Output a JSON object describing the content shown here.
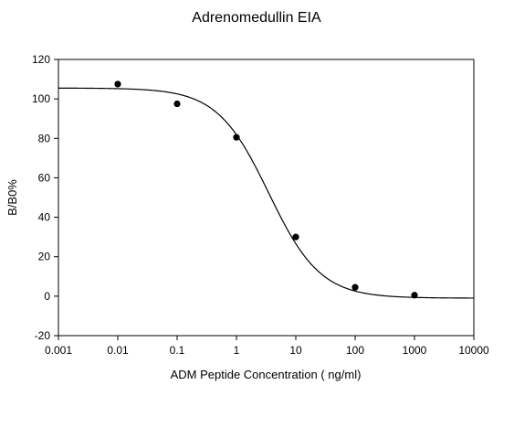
{
  "chart_data": {
    "type": "scatter",
    "title": "Adrenomedullin EIA",
    "xlabel": "ADM Peptide Concentration ( ng/ml)",
    "ylabel": "B/B0%",
    "xscale": "log",
    "xlim": [
      0.001,
      10000
    ],
    "ylim": [
      -20,
      120
    ],
    "xticks": [
      0.001,
      0.01,
      0.1,
      1,
      10,
      100,
      1000,
      10000
    ],
    "xtick_labels": [
      "0.001",
      "0.01",
      "0.1",
      "1",
      "10",
      "100",
      "1000",
      "10000"
    ],
    "yticks": [
      -20,
      0,
      20,
      40,
      60,
      80,
      100,
      120
    ],
    "ytick_labels": [
      "-20",
      "0",
      "20",
      "40",
      "60",
      "80",
      "100",
      "120"
    ],
    "grid": false,
    "series": [
      {
        "kind": "points",
        "x": [
          0.01,
          0.1,
          1,
          10,
          100,
          1000
        ],
        "y": [
          107.5,
          97.5,
          80.5,
          30,
          4.5,
          0.5
        ]
      },
      {
        "kind": "fitted-curve",
        "model": "4PL",
        "top": 105.5,
        "bottom": -1,
        "ec50": 3.5,
        "hill": 1.0,
        "x_range": [
          0.001,
          10000
        ]
      }
    ],
    "colors": {
      "points": "#000000",
      "curve": "#000000",
      "axes": "#000000"
    }
  }
}
